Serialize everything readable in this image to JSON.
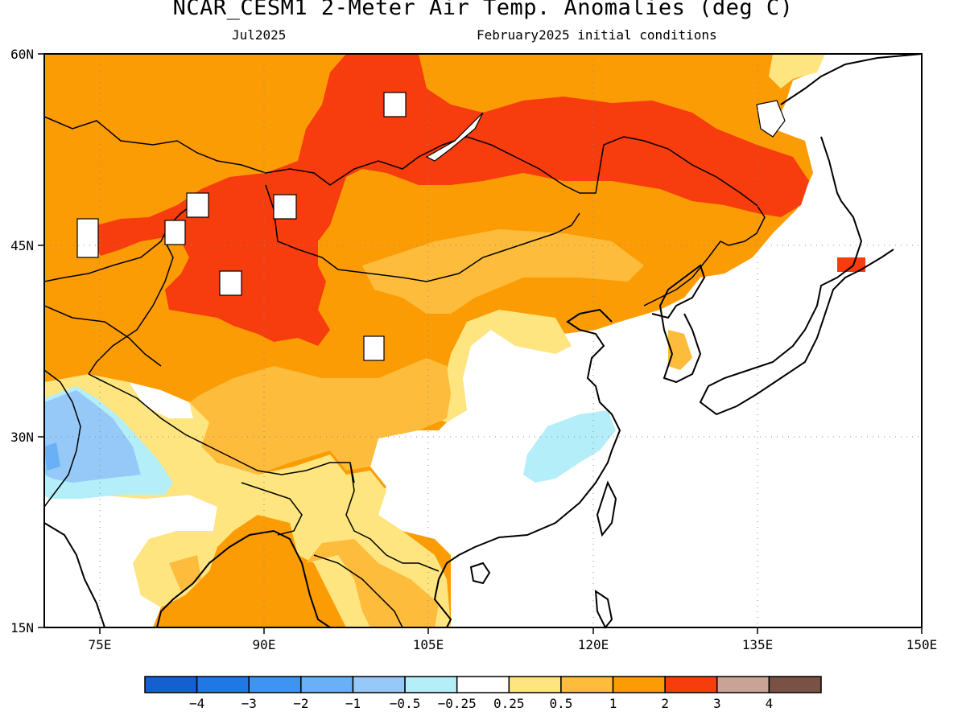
{
  "title": "NCAR_CESM1 2-Meter Air Temp. Anomalies (deg C)",
  "subtitle_left": "Jul2025",
  "subtitle_right": "February2025 initial conditions",
  "map": {
    "lon_range": [
      70,
      150
    ],
    "lat_range": [
      15,
      60
    ],
    "lon_ticks": [
      "75E",
      "90E",
      "105E",
      "120E",
      "135E",
      "150E"
    ],
    "lat_ticks": [
      "60N",
      "45N",
      "30N",
      "15N"
    ],
    "gridlines": "dotted"
  },
  "colorbar": {
    "labels": [
      "-4",
      "-3",
      "-2",
      "-1",
      "-0.5",
      "-0.25",
      "0.25",
      "0.5",
      "1",
      "2",
      "3",
      "4"
    ],
    "colors": [
      "#1560d0",
      "#1f78e6",
      "#3d94f2",
      "#6ab0f6",
      "#96c9f8",
      "#b4eef8",
      "#ffffff",
      "#fee57f",
      "#fdbc3c",
      "#fc9c05",
      "#f73c0d",
      "#c9a396",
      "#7a5245"
    ]
  }
}
